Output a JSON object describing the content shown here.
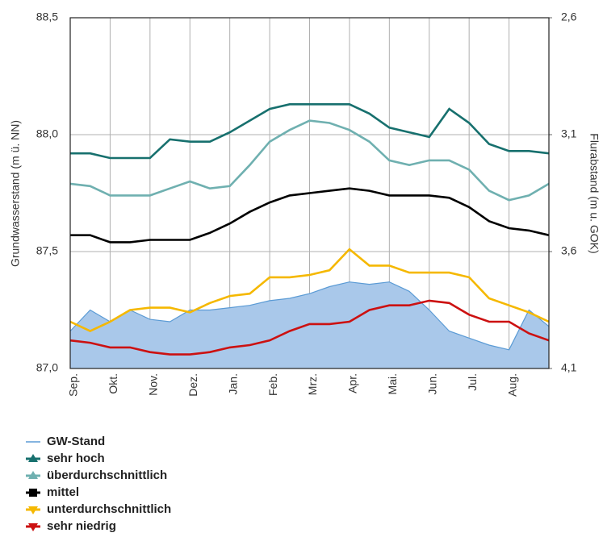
{
  "chart_data": {
    "type": "line",
    "y_label": "Grundwasserstand (m ü. NN)",
    "y2_label": "Flurabstand (m u. GOK)",
    "x": [
      0,
      0.5,
      1,
      1.5,
      2,
      2.5,
      3,
      3.5,
      4,
      4.5,
      5,
      5.5,
      6,
      6.5,
      7,
      7.5,
      8,
      8.5,
      9,
      9.5,
      10,
      10.5,
      11,
      11.5,
      12
    ],
    "xlim": [
      0,
      12
    ],
    "xticks": [
      {
        "value": 0,
        "label": "Sep."
      },
      {
        "value": 1,
        "label": "Okt."
      },
      {
        "value": 2,
        "label": "Nov."
      },
      {
        "value": 3,
        "label": "Dez."
      },
      {
        "value": 4,
        "label": "Jan."
      },
      {
        "value": 5,
        "label": "Feb."
      },
      {
        "value": 6,
        "label": "Mrz."
      },
      {
        "value": 7,
        "label": "Apr."
      },
      {
        "value": 8,
        "label": "Mai."
      },
      {
        "value": 9,
        "label": "Jun."
      },
      {
        "value": 10,
        "label": "Jul."
      },
      {
        "value": 11,
        "label": "Aug."
      }
    ],
    "ylim": [
      87.0,
      88.5
    ],
    "yticks": [
      {
        "value": 87.0,
        "label": "87,0"
      },
      {
        "value": 87.5,
        "label": "87,5"
      },
      {
        "value": 88.0,
        "label": "88,0"
      },
      {
        "value": 88.5,
        "label": "88,5"
      }
    ],
    "y2lim": [
      4.1,
      2.6
    ],
    "y2ticks": [
      {
        "value": 2.6,
        "label": "2,6"
      },
      {
        "value": 3.1,
        "label": "3,1"
      },
      {
        "value": 3.6,
        "label": "3,6"
      },
      {
        "value": 4.1,
        "label": "4,1"
      }
    ],
    "grid": true,
    "series": [
      {
        "name": "GW-Stand",
        "color": "#5b9bd5",
        "fill": "#a9c8ea",
        "marker": "none",
        "area": true,
        "values": [
          87.16,
          87.25,
          87.2,
          87.25,
          87.21,
          87.2,
          87.25,
          87.25,
          87.26,
          87.27,
          87.29,
          87.3,
          87.32,
          87.35,
          87.37,
          87.36,
          87.37,
          87.33,
          87.25,
          87.16,
          87.13,
          87.1,
          87.08,
          87.25,
          87.18
        ]
      },
      {
        "name": "sehr hoch",
        "color": "#17706e",
        "marker": "triangle-up",
        "values": [
          87.92,
          87.92,
          87.9,
          87.9,
          87.9,
          87.98,
          87.97,
          87.97,
          88.01,
          88.06,
          88.11,
          88.13,
          88.13,
          88.13,
          88.13,
          88.09,
          88.03,
          88.01,
          87.99,
          88.11,
          88.05,
          87.96,
          87.93,
          87.93,
          87.92
        ]
      },
      {
        "name": "überdurchschnittlich",
        "color": "#6fb0b0",
        "marker": "triangle-up",
        "values": [
          87.79,
          87.78,
          87.74,
          87.74,
          87.74,
          87.77,
          87.8,
          87.77,
          87.78,
          87.87,
          87.97,
          88.02,
          88.06,
          88.05,
          88.02,
          87.97,
          87.89,
          87.87,
          87.89,
          87.89,
          87.85,
          87.76,
          87.72,
          87.74,
          87.79
        ]
      },
      {
        "name": "mittel",
        "color": "#000000",
        "marker": "square",
        "values": [
          87.57,
          87.57,
          87.54,
          87.54,
          87.55,
          87.55,
          87.55,
          87.58,
          87.62,
          87.67,
          87.71,
          87.74,
          87.75,
          87.76,
          87.77,
          87.76,
          87.74,
          87.74,
          87.74,
          87.73,
          87.69,
          87.63,
          87.6,
          87.59,
          87.57
        ]
      },
      {
        "name": "unterdurchschnittlich",
        "color": "#f5b800",
        "marker": "triangle-down",
        "values": [
          87.2,
          87.16,
          87.2,
          87.25,
          87.26,
          87.26,
          87.24,
          87.28,
          87.31,
          87.32,
          87.39,
          87.39,
          87.4,
          87.42,
          87.51,
          87.44,
          87.44,
          87.41,
          87.41,
          87.41,
          87.39,
          87.3,
          87.27,
          87.24,
          87.2
        ]
      },
      {
        "name": "sehr niedrig",
        "color": "#cc1111",
        "marker": "triangle-down",
        "values": [
          87.12,
          87.11,
          87.09,
          87.09,
          87.07,
          87.06,
          87.06,
          87.07,
          87.09,
          87.1,
          87.12,
          87.16,
          87.19,
          87.19,
          87.2,
          87.25,
          87.27,
          87.27,
          87.29,
          87.28,
          87.23,
          87.2,
          87.2,
          87.15,
          87.12
        ]
      }
    ]
  }
}
